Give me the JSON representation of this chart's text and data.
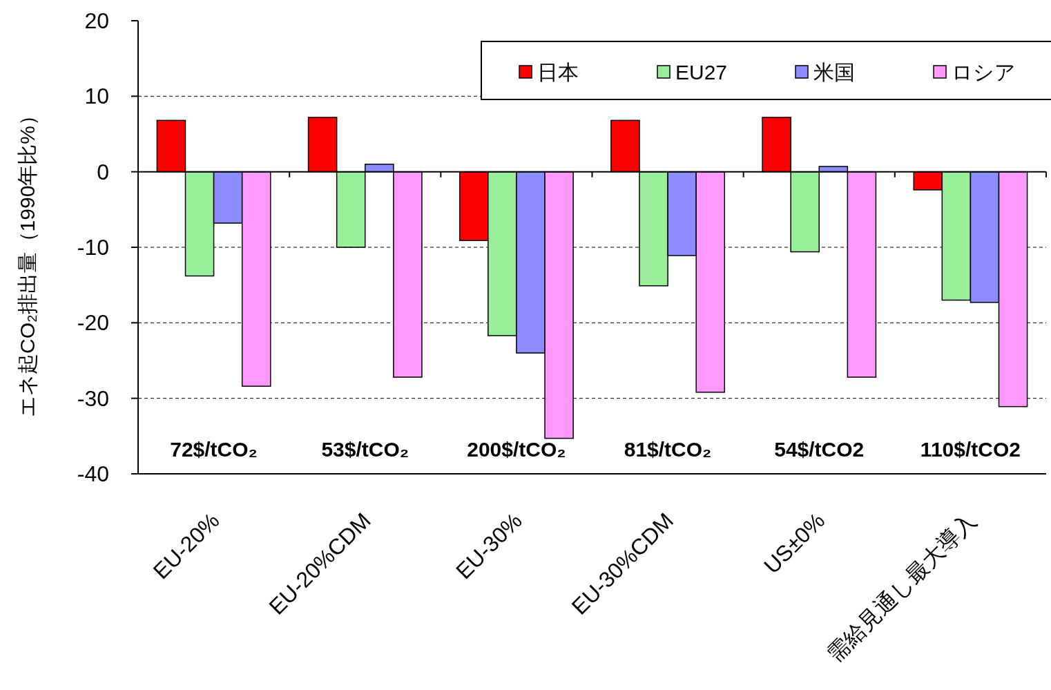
{
  "chart_data": {
    "type": "bar",
    "ylabel": "エネ起CO₂排出量（1990年比%）",
    "categories": [
      "EU-20%",
      "EU-20%CDM",
      "EU-30%",
      "EU-30%CDM",
      "US±0%",
      "需給見通し最大導入"
    ],
    "series": [
      {
        "name": "日本",
        "color": "#ff0000",
        "values": [
          6.8,
          7.2,
          -9.1,
          6.8,
          7.2,
          -2.4
        ]
      },
      {
        "name": "EU27",
        "color": "#99ee99",
        "values": [
          -13.8,
          -10.0,
          -21.7,
          -15.1,
          -10.6,
          -17.0
        ]
      },
      {
        "name": "米国",
        "color": "#8c8cff",
        "values": [
          -6.8,
          1.0,
          -24.0,
          -11.1,
          0.7,
          -17.3
        ]
      },
      {
        "name": "ロシア",
        "color": "#ff99ff",
        "values": [
          -28.4,
          -27.2,
          -35.3,
          -29.2,
          -27.2,
          -31.1
        ]
      }
    ],
    "ylim": [
      -40,
      20
    ],
    "yticks": [
      -40,
      -30,
      -20,
      -10,
      0,
      10,
      20
    ],
    "grid": "y",
    "legend": "top right",
    "annotations": [
      "72$/tCO₂",
      "53$/tCO₂",
      "200$/tCO₂",
      "81$/tCO₂",
      "54$/tCO2",
      "110$/tCO2"
    ]
  }
}
